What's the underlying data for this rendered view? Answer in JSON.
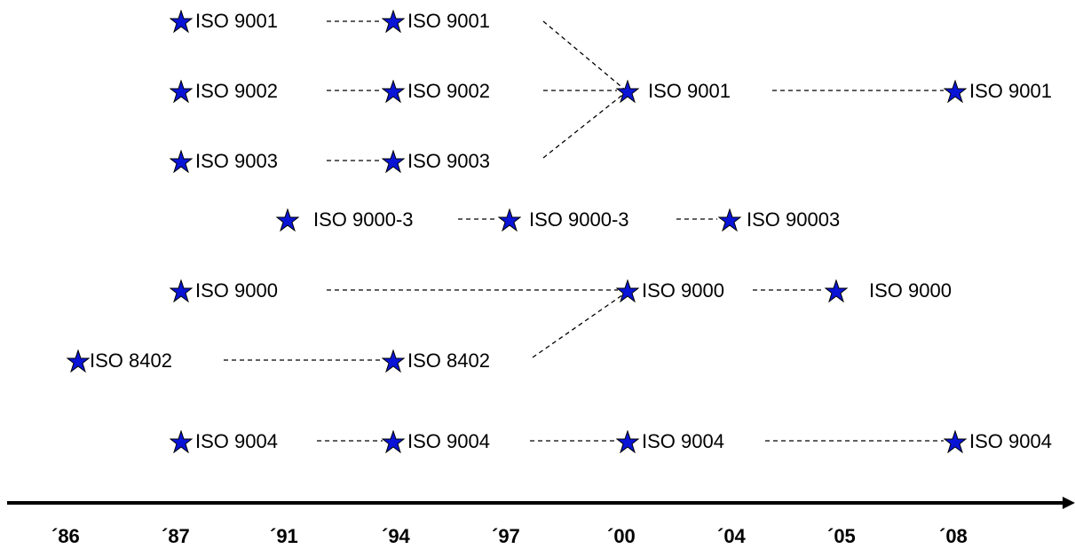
{
  "colors": {
    "star_fill": "#0a14d6",
    "star_stroke": "#000000",
    "line": "#000000"
  },
  "icon": "star-icon",
  "nodes": [
    {
      "id": "r1a",
      "label": "ISO 9001"
    },
    {
      "id": "r1b",
      "label": "ISO 9001"
    },
    {
      "id": "r2a",
      "label": "ISO 9002"
    },
    {
      "id": "r2b",
      "label": "ISO 9002"
    },
    {
      "id": "r2c",
      "label": "ISO 9001"
    },
    {
      "id": "r2d",
      "label": "ISO 9001"
    },
    {
      "id": "r3a",
      "label": "ISO 9003"
    },
    {
      "id": "r3b",
      "label": "ISO 9003"
    },
    {
      "id": "r4a",
      "label": "ISO 9000-3"
    },
    {
      "id": "r4b",
      "label": "ISO 9000-3"
    },
    {
      "id": "r4c",
      "label": "ISO 90003"
    },
    {
      "id": "r5a",
      "label": "ISO 9000"
    },
    {
      "id": "r5b",
      "label": "ISO 9000"
    },
    {
      "id": "r5c",
      "label": "ISO 9000"
    },
    {
      "id": "r6a",
      "label": "ISO 8402"
    },
    {
      "id": "r6b",
      "label": "ISO 8402"
    },
    {
      "id": "r7a",
      "label": "ISO 9004"
    },
    {
      "id": "r7b",
      "label": "ISO 9004"
    },
    {
      "id": "r7c",
      "label": "ISO 9004"
    },
    {
      "id": "r7d",
      "label": "ISO 9004"
    }
  ],
  "timeline": {
    "years": [
      "´86",
      "´87",
      "´91",
      "´94",
      "´97",
      "´00",
      "´04",
      "´05",
      "´08"
    ]
  }
}
